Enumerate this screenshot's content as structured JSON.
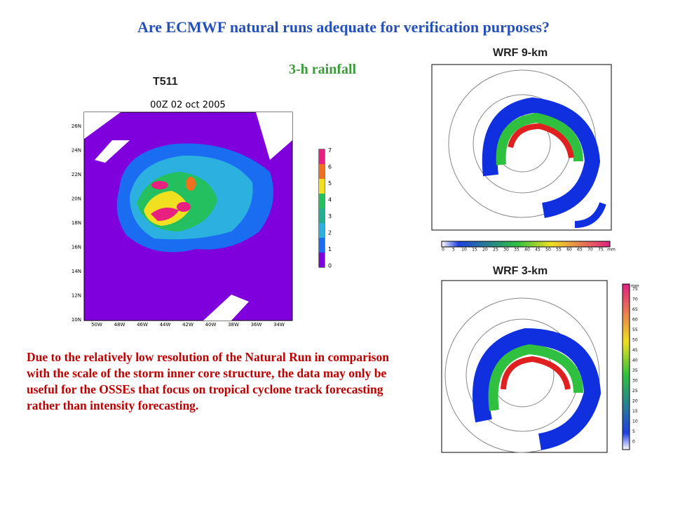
{
  "title": "Are ECMWF natural runs adequate for verification purposes?",
  "subtitle": "3-h rainfall",
  "panels": [
    {
      "label": "T511",
      "map_title": "00Z 02 oct 2005",
      "lat_labels": [
        "26N",
        "24N",
        "22N",
        "20N",
        "18N",
        "16N",
        "14N",
        "12N",
        "10N"
      ],
      "lon_labels": [
        "50W",
        "48W",
        "46W",
        "44W",
        "42W",
        "40W",
        "38W",
        "36W",
        "34W"
      ],
      "colorbar_labels": [
        "0",
        "1",
        "2",
        "3",
        "4",
        "5",
        "6",
        "7"
      ]
    },
    {
      "label": "WRF 9-km",
      "colorbar_labels": [
        "0",
        "5",
        "10",
        "15",
        "20",
        "25",
        "30",
        "35",
        "40",
        "45",
        "50",
        "55",
        "60",
        "65",
        "70",
        "75",
        "mm"
      ]
    },
    {
      "label": "WRF 3-km",
      "colorbar_labels": [
        "0",
        "5",
        "10",
        "15",
        "20",
        "25",
        "30",
        "35",
        "40",
        "45",
        "50",
        "55",
        "60",
        "65",
        "70",
        "75"
      ],
      "unit": "mm"
    }
  ],
  "note": "Due to the relatively low resolution of the Natural Run in comparison with the scale of the storm inner core structure, the data may only be useful for the OSSEs that focus on tropical cyclone track forecasting rather than intensity forecasting."
}
